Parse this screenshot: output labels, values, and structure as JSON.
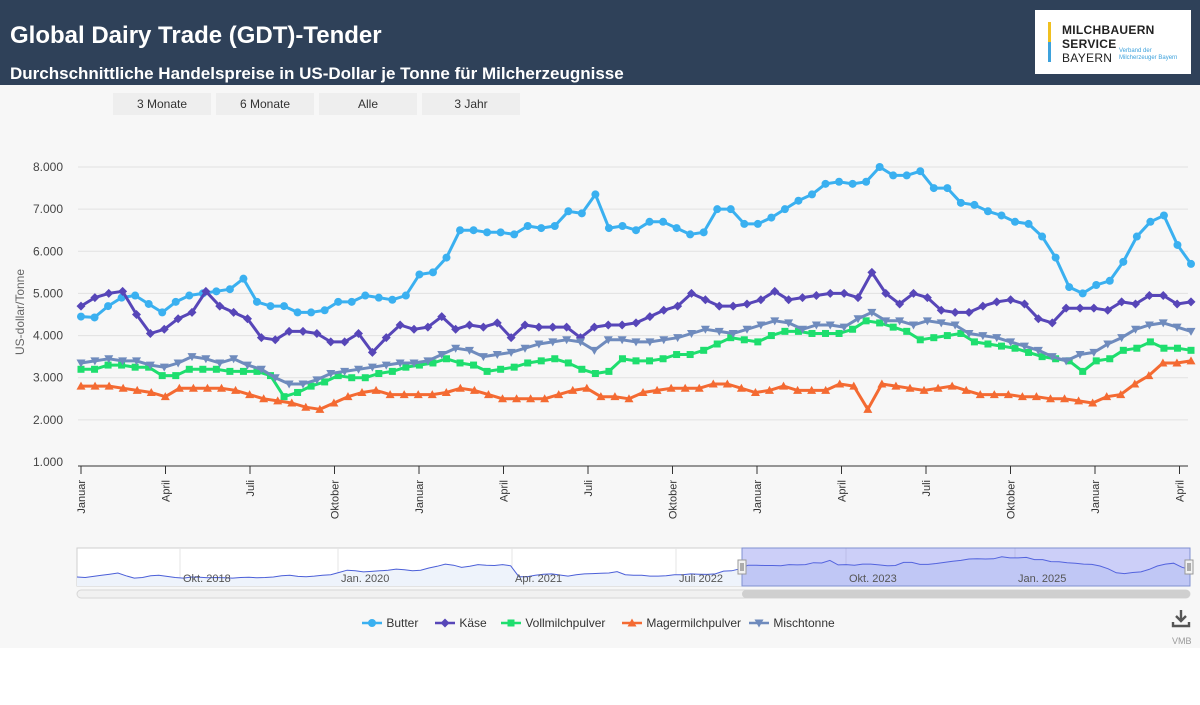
{
  "header": {
    "title": "Global Dairy Trade (GDT)-Tender",
    "subtitle": "Durchschnittliche Handelspreise in US-Dollar je Tonne für Milcherzeugnisse"
  },
  "logo": {
    "line1": "MILCHBAUERN",
    "line2": "SERVICE",
    "line3": "BAYERN",
    "tagline": "Verband der Milcherzeuger Bayern"
  },
  "range_buttons": [
    "3 Monate",
    "6 Monate",
    "Alle",
    "3 Jahr"
  ],
  "credit": "VMB",
  "download_icon": "download-icon",
  "chart_data": {
    "type": "line",
    "ylabel": "US-dollar/Tonne",
    "ylim": [
      1000,
      8000
    ],
    "yticks": [
      "1.000",
      "2.000",
      "3.000",
      "4.000",
      "5.000",
      "6.000",
      "7.000",
      "8.000"
    ],
    "yvalues": [
      1000,
      2000,
      3000,
      4000,
      5000,
      6000,
      7000,
      8000
    ],
    "grid": true,
    "legend_position": "bottom",
    "xticks": [
      "Januar",
      "April",
      "Juli",
      "Oktober",
      "Januar",
      "April",
      "Juli",
      "Oktober",
      "Januar",
      "April",
      "Juli",
      "Oktober",
      "Januar",
      "April"
    ],
    "navigator_labels": [
      "Okt. 2018",
      "Jan. 2020",
      "Apr. 2021",
      "Juli 2022",
      "Okt. 2023",
      "Jan. 2025"
    ],
    "series": [
      {
        "name": "Butter",
        "color": "#3ab0f0",
        "marker": "circle",
        "values": [
          4450,
          4430,
          4700,
          4900,
          4950,
          4750,
          4550,
          4800,
          4950,
          5000,
          5050,
          5100,
          5350,
          4800,
          4700,
          4700,
          4550,
          4550,
          4600,
          4800,
          4800,
          4950,
          4900,
          4850,
          4950,
          5450,
          5500,
          5850,
          6500,
          6500,
          6450,
          6450,
          6400,
          6600,
          6550,
          6600,
          6950,
          6900,
          7350,
          6550,
          6600,
          6500,
          6700,
          6700,
          6550,
          6400,
          6450,
          7000,
          7000,
          6650,
          6650,
          6800,
          7000,
          7200,
          7350,
          7600,
          7650,
          7600,
          7650,
          8000,
          7800,
          7800,
          7900,
          7500,
          7500,
          7150,
          7100,
          6950,
          6850,
          6700,
          6650,
          6350,
          5850,
          5150,
          5000,
          5200,
          5300,
          5750,
          6350,
          6700,
          6850,
          6150,
          5700
        ]
      },
      {
        "name": "Käse",
        "color": "#5746b8",
        "marker": "diamond",
        "values": [
          4700,
          4900,
          5000,
          5050,
          4500,
          4050,
          4150,
          4400,
          4550,
          5050,
          4700,
          4550,
          4400,
          3950,
          3900,
          4100,
          4100,
          4050,
          3850,
          3850,
          4050,
          3600,
          3950,
          4250,
          4150,
          4200,
          4450,
          4150,
          4250,
          4200,
          4300,
          3950,
          4250,
          4200,
          4200,
          4200,
          3950,
          4200,
          4250,
          4250,
          4300,
          4450,
          4600,
          4700,
          5000,
          4850,
          4700,
          4700,
          4750,
          4850,
          5050,
          4850,
          4900,
          4950,
          5000,
          5000,
          4900,
          5500,
          5000,
          4750,
          5000,
          4900,
          4600,
          4550,
          4550,
          4700,
          4800,
          4850,
          4750,
          4400,
          4300,
          4650,
          4650,
          4650,
          4600,
          4800,
          4750,
          4950,
          4950,
          4750,
          4800
        ]
      },
      {
        "name": "Vollmilchpulver",
        "color": "#1ede6e",
        "marker": "square",
        "values": [
          3200,
          3200,
          3300,
          3300,
          3250,
          3250,
          3050,
          3050,
          3200,
          3200,
          3200,
          3150,
          3150,
          3150,
          3050,
          2550,
          2650,
          2800,
          2900,
          3050,
          3000,
          3000,
          3100,
          3150,
          3250,
          3300,
          3350,
          3450,
          3350,
          3300,
          3150,
          3200,
          3250,
          3350,
          3400,
          3450,
          3350,
          3200,
          3100,
          3150,
          3450,
          3400,
          3400,
          3450,
          3550,
          3550,
          3650,
          3800,
          3950,
          3900,
          3850,
          4000,
          4100,
          4100,
          4050,
          4050,
          4050,
          4150,
          4350,
          4300,
          4200,
          4100,
          3900,
          3950,
          4000,
          4050,
          3850,
          3800,
          3750,
          3700,
          3600,
          3500,
          3450,
          3400,
          3150,
          3400,
          3450,
          3650,
          3700,
          3850,
          3700,
          3700,
          3650
        ]
      },
      {
        "name": "Magermilchpulver",
        "color": "#f46a32",
        "marker": "triangle",
        "values": [
          2800,
          2800,
          2800,
          2750,
          2700,
          2650,
          2550,
          2750,
          2750,
          2750,
          2750,
          2700,
          2600,
          2500,
          2450,
          2400,
          2300,
          2250,
          2400,
          2550,
          2650,
          2700,
          2600,
          2600,
          2600,
          2600,
          2650,
          2750,
          2700,
          2600,
          2500,
          2500,
          2500,
          2500,
          2600,
          2700,
          2750,
          2550,
          2550,
          2500,
          2650,
          2700,
          2750,
          2750,
          2750,
          2850,
          2850,
          2750,
          2650,
          2700,
          2800,
          2700,
          2700,
          2700,
          2850,
          2800,
          2250,
          2850,
          2800,
          2750,
          2700,
          2750,
          2800,
          2700,
          2600,
          2600,
          2600,
          2550,
          2550,
          2500,
          2500,
          2450,
          2400,
          2550,
          2600,
          2850,
          3050,
          3350,
          3350,
          3400
        ]
      },
      {
        "name": "Mischtonne",
        "color": "#6f8bbd",
        "marker": "triangle-down",
        "values": [
          3350,
          3400,
          3450,
          3400,
          3400,
          3300,
          3250,
          3350,
          3500,
          3450,
          3350,
          3450,
          3300,
          3200,
          3000,
          2850,
          2850,
          2950,
          3100,
          3150,
          3200,
          3250,
          3300,
          3350,
          3350,
          3400,
          3550,
          3700,
          3650,
          3500,
          3550,
          3600,
          3700,
          3800,
          3850,
          3900,
          3850,
          3650,
          3900,
          3900,
          3850,
          3850,
          3900,
          3950,
          4050,
          4150,
          4100,
          4050,
          4150,
          4250,
          4350,
          4300,
          4150,
          4250,
          4250,
          4200,
          4400,
          4550,
          4350,
          4350,
          4250,
          4350,
          4300,
          4250,
          4050,
          4000,
          3950,
          3850,
          3750,
          3650,
          3500,
          3400,
          3550,
          3600,
          3800,
          3950,
          4150,
          4250,
          4300,
          4200,
          4100
        ]
      }
    ],
    "navigator_series": "Butter"
  }
}
